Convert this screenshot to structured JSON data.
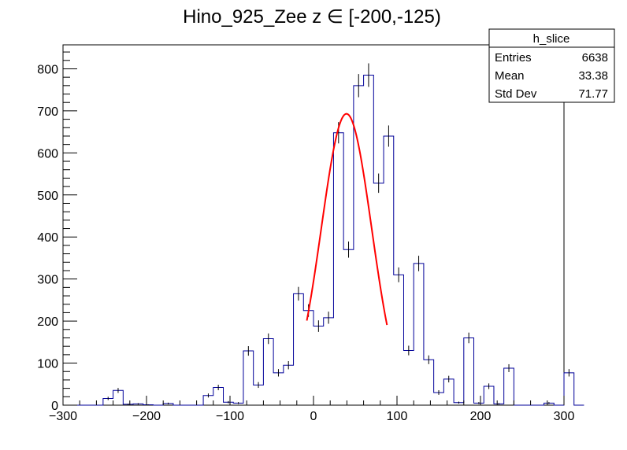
{
  "chart_data": {
    "type": "histogram",
    "title": "Hino_925_Zee z  ∈ [-200,-125)",
    "xlabel": "",
    "ylabel": "",
    "xlim": [
      -300,
      300
    ],
    "ylim": [
      0,
      857
    ],
    "x_ticks": [
      "−300",
      "−200",
      "−100",
      "0",
      "100",
      "200",
      "300"
    ],
    "x_tick_values": [
      -300,
      -200,
      -100,
      0,
      100,
      200,
      300
    ],
    "y_ticks": [
      "0",
      "100",
      "200",
      "300",
      "400",
      "500",
      "600",
      "700",
      "800"
    ],
    "y_tick_values": [
      0,
      100,
      200,
      300,
      400,
      500,
      600,
      700,
      800
    ],
    "bin_width": 12,
    "bin_edges_start": -300,
    "bin_contents": [
      0,
      0,
      0,
      0,
      16,
      35,
      2,
      3,
      1,
      0,
      4,
      0,
      0,
      0,
      23,
      42,
      7,
      5,
      129,
      48,
      158,
      77,
      95,
      265,
      225,
      188,
      208,
      648,
      370,
      760,
      785,
      528,
      640,
      310,
      130,
      337,
      108,
      30,
      62,
      6,
      160,
      5,
      45,
      3,
      88,
      0,
      0,
      0,
      5,
      0,
      77,
      0
    ],
    "fit": {
      "function": "gaus",
      "constant": 693,
      "mean": 39.5,
      "sigma": 30.2,
      "range": [
        -8,
        88
      ],
      "color": "#ff0000"
    },
    "histogram_color": "#000099",
    "stats_box": {
      "name": "h_slice",
      "rows": [
        {
          "label": "Entries",
          "value": "6638"
        },
        {
          "label": "Mean",
          "value": "33.38"
        },
        {
          "label": "Std Dev",
          "value": "71.77"
        }
      ]
    },
    "grid": false,
    "legend_position": "top-right"
  }
}
